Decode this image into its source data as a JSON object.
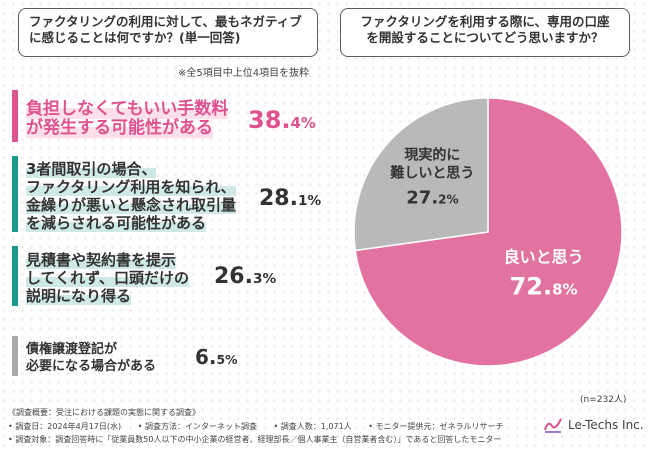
{
  "left_panel": {
    "question_lines": [
      "ファクタリングの利用に対して、最もネガティブ",
      "に感じることは何ですか？(単一回答)"
    ],
    "note": "※全5項目中上位4項目を抜粋",
    "items": [
      {
        "lines": [
          "負担しなくてもいい手数料",
          "が発生する可能性がある"
        ],
        "pct_main": "38.",
        "pct_small": "4%",
        "value": 38.4,
        "color": "#e0528e"
      },
      {
        "lines": [
          "3者間取引の場合、",
          "ファクタリング利用を知られ、",
          "金繰りが悪いと懸念され取引量",
          "を減らされる可能性がある"
        ],
        "pct_main": "28.",
        "pct_small": "1%",
        "value": 28.1,
        "color": "#1a9a8d"
      },
      {
        "lines": [
          "見積書や契約書を提示",
          "してくれず、口頭だけの",
          "説明になり得る"
        ],
        "pct_main": "26.",
        "pct_small": "3%",
        "value": 26.3,
        "color": "#1a9a8d"
      },
      {
        "lines": [
          "債権譲渡登記が",
          "必要になる場合がある"
        ],
        "pct_main": "6.",
        "pct_small": "5%",
        "value": 6.5,
        "color": "#aaaaaa"
      }
    ]
  },
  "right_panel": {
    "question_lines": [
      "ファクタリングを利用する際に、専用の口座",
      "を開設することについてどう思いますか？"
    ],
    "n_note": "(n=232人)"
  },
  "chart_data": [
    {
      "type": "bar",
      "title": "ファクタリングの利用に対して、最もネガティブに感じることは何ですか？(単一回答)",
      "categories": [
        "負担しなくてもいい手数料が発生する可能性がある",
        "3者間取引の場合、ファクタリング利用を知られ、金繰りが悪いと懸念され取引量を減らされる可能性がある",
        "見積書や契約書を提示してくれず、口頭だけの説明になり得る",
        "債権譲渡登記が必要になる場合がある"
      ],
      "values": [
        38.4,
        28.1,
        26.3,
        6.5
      ],
      "unit": "%"
    },
    {
      "type": "pie",
      "title": "ファクタリングを利用する際に、専用の口座を開設することについてどう思いますか？",
      "slices": [
        {
          "label_lines": [
            "良いと思う"
          ],
          "value": 72.8,
          "pct_main": "72.",
          "pct_small": "8%",
          "color": "#e2729f",
          "text_color": "#ffffff"
        },
        {
          "label_lines": [
            "現実的に",
            "難しいと思う"
          ],
          "value": 27.2,
          "pct_main": "27.",
          "pct_small": "2%",
          "color": "#b9b9b9",
          "text_color": "#333333"
        }
      ],
      "n": 232
    }
  ],
  "footer": {
    "line1": "《調査概要：受注における課題の実態に関する調査》",
    "line2": [
      "• 調査日：2024年4月17日(水)",
      "• 調査方法：インターネット調査",
      "• 調査人数：1,071人",
      "• モニター提供元：ゼネラルリサーチ"
    ],
    "line3": "• 調査対象：調査回答時に「従業員数50人以下の中小企業の経営者、経理部長／個人事業主（自営業者含む）」であると回答したモニター"
  },
  "logo": {
    "text": "Le-Techs Inc."
  }
}
